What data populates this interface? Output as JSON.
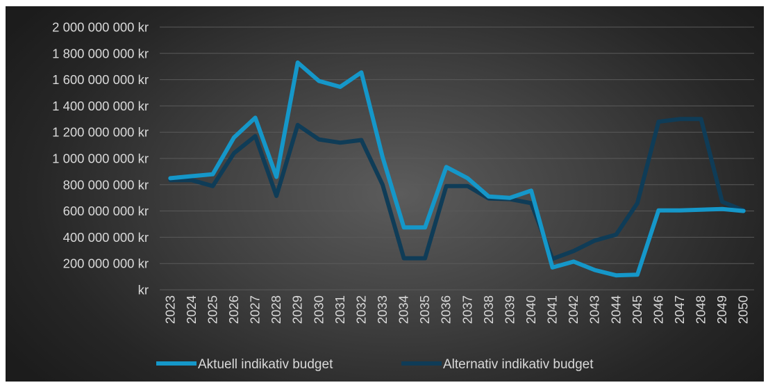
{
  "chart_data": {
    "type": "line",
    "title": "",
    "xlabel": "",
    "ylabel": "",
    "ylim": [
      0,
      2000000000
    ],
    "grid": true,
    "legend_position": "bottom",
    "x": [
      "2023",
      "2024",
      "2025",
      "2026",
      "2027",
      "2028",
      "2029",
      "2030",
      "2031",
      "2032",
      "2033",
      "2034",
      "2035",
      "2036",
      "2037",
      "2038",
      "2039",
      "2040",
      "2041",
      "2042",
      "2043",
      "2044",
      "2045",
      "2046",
      "2047",
      "2048",
      "2049",
      "2050"
    ],
    "y_ticks": [
      0,
      200000000,
      400000000,
      600000000,
      800000000,
      1000000000,
      1200000000,
      1400000000,
      1600000000,
      1800000000,
      2000000000
    ],
    "y_tick_labels": [
      "kr",
      "200 000 000 kr",
      "400 000 000 kr",
      "600 000 000 kr",
      "800 000 000 kr",
      "1 000 000 000 kr",
      "1 200 000 000 kr",
      "1 400 000 000 kr",
      "1 600 000 000 kr",
      "1 800 000 000 kr",
      "2 000 000 000 kr"
    ],
    "series": [
      {
        "name": "Aktuell indikativ budget",
        "color": "#1597c9",
        "values": [
          850000000,
          865000000,
          880000000,
          1160000000,
          1310000000,
          860000000,
          1730000000,
          1590000000,
          1545000000,
          1655000000,
          1010000000,
          475000000,
          475000000,
          935000000,
          850000000,
          710000000,
          700000000,
          755000000,
          170000000,
          215000000,
          150000000,
          110000000,
          115000000,
          605000000,
          605000000,
          610000000,
          615000000,
          600000000
        ]
      },
      {
        "name": "Alternativ indikativ budget",
        "color": "#0f3c57",
        "values": [
          835000000,
          835000000,
          790000000,
          1040000000,
          1170000000,
          715000000,
          1255000000,
          1145000000,
          1120000000,
          1140000000,
          800000000,
          240000000,
          240000000,
          790000000,
          790000000,
          695000000,
          690000000,
          660000000,
          235000000,
          295000000,
          375000000,
          420000000,
          660000000,
          1280000000,
          1300000000,
          1300000000,
          670000000,
          605000000
        ]
      }
    ]
  }
}
